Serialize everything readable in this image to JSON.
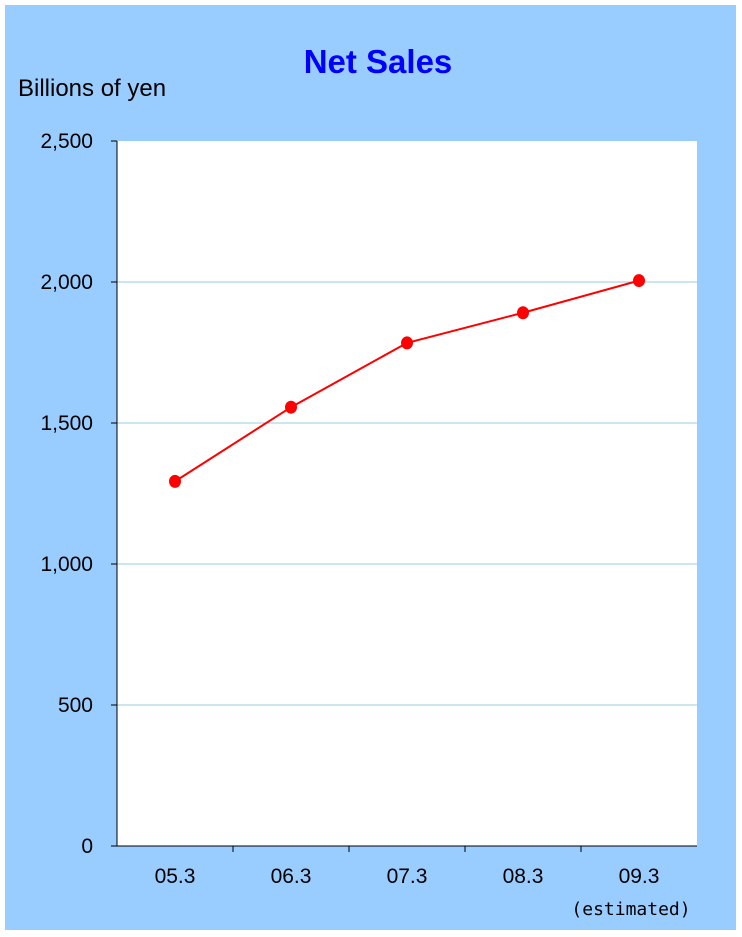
{
  "chart_data": {
    "type": "line",
    "title": "Net Sales",
    "xlabel": "",
    "ylabel": "Billions of yen",
    "categories": [
      "05.3",
      "06.3",
      "07.3",
      "08.3",
      "09.3"
    ],
    "category_note": {
      "category": "09.3",
      "text": "(estimated)"
    },
    "series": [
      {
        "values": [
          1293,
          1556,
          1784,
          1891,
          2005
        ]
      }
    ],
    "ylim": [
      0,
      2500
    ],
    "yticks": [
      0,
      500,
      1000,
      1500,
      2000,
      2500
    ],
    "ytick_labels": [
      "0",
      "500",
      "1,000",
      "1,500",
      "2,000",
      "2,500"
    ],
    "grid": true,
    "colors": {
      "background": "#99ccff",
      "plot_area": "#ffffff",
      "gridline": "#99ccdd",
      "series": "#ff0000",
      "title": "#0000ff"
    }
  }
}
